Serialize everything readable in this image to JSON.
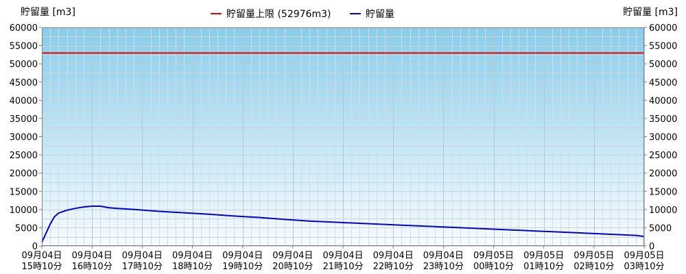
{
  "chart_data": {
    "type": "line",
    "left_axis_title": "貯留量 [m3]",
    "right_axis_title": "貯留量 [m3]",
    "ylim": [
      0,
      60000
    ],
    "y_ticks": [
      0,
      5000,
      10000,
      15000,
      20000,
      25000,
      30000,
      35000,
      40000,
      45000,
      50000,
      55000,
      60000
    ],
    "x_ticks": [
      {
        "date": "09月04日",
        "time": "15時10分"
      },
      {
        "date": "09月04日",
        "time": "16時10分"
      },
      {
        "date": "09月04日",
        "time": "17時10分"
      },
      {
        "date": "09月04日",
        "time": "18時10分"
      },
      {
        "date": "09月04日",
        "time": "19時10分"
      },
      {
        "date": "09月04日",
        "time": "20時10分"
      },
      {
        "date": "09月04日",
        "time": "21時10分"
      },
      {
        "date": "09月04日",
        "time": "22時10分"
      },
      {
        "date": "09月04日",
        "time": "23時10分"
      },
      {
        "date": "09月05日",
        "time": "00時10分"
      },
      {
        "date": "09月05日",
        "time": "01時10分"
      },
      {
        "date": "09月05日",
        "time": "02時10分"
      },
      {
        "date": "09月05日",
        "time": "03時10分"
      }
    ],
    "grid": true,
    "legend_position": "top-center",
    "limit_line": {
      "name": "貯留量上限 (52976m3)",
      "value": 52976,
      "color": "#e00000"
    },
    "series": [
      {
        "name": "貯留量",
        "color": "#0000cc",
        "x": [
          "15:10",
          "15:15",
          "15:20",
          "15:25",
          "15:30",
          "15:40",
          "15:50",
          "16:00",
          "16:10",
          "16:20",
          "16:30",
          "16:40",
          "17:00",
          "17:30",
          "18:00",
          "18:30",
          "19:00",
          "19:30",
          "20:00",
          "20:30",
          "21:00",
          "21:30",
          "22:00",
          "22:30",
          "23:00",
          "23:30",
          "00:00",
          "00:30",
          "01:00",
          "01:30",
          "02:00",
          "02:30",
          "03:00",
          "03:10"
        ],
        "y": [
          1000,
          3500,
          6000,
          8000,
          9000,
          9800,
          10300,
          10700,
          10900,
          10900,
          10500,
          10300,
          10000,
          9500,
          9100,
          8700,
          8200,
          7800,
          7300,
          6800,
          6500,
          6200,
          5900,
          5600,
          5300,
          5000,
          4700,
          4400,
          4100,
          3800,
          3500,
          3200,
          2900,
          2600
        ]
      }
    ]
  }
}
